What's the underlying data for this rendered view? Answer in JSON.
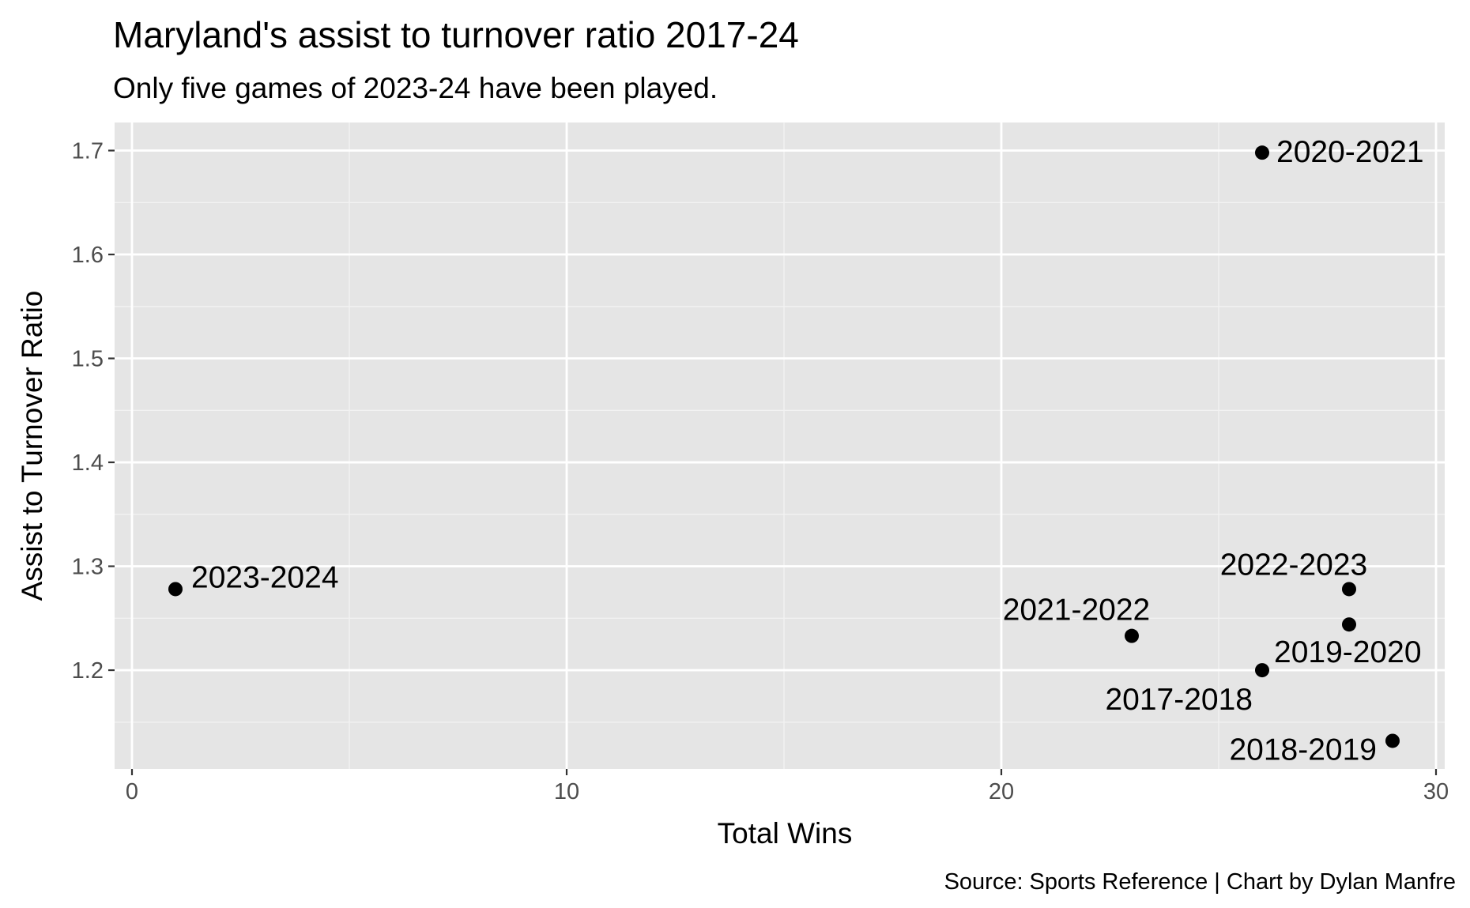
{
  "chart_data": {
    "type": "scatter",
    "title": "Maryland's assist to turnover ratio 2017-24",
    "subtitle": "Only five games of 2023-24 have been played.",
    "xlabel": "Total Wins",
    "ylabel": "Assist to Turnover Ratio",
    "caption": "Source: Sports Reference | Chart by Dylan Manfre",
    "xlim": [
      -0.4,
      30.2
    ],
    "ylim": [
      1.105,
      1.727
    ],
    "x_ticks": [
      0,
      10,
      20,
      30
    ],
    "y_ticks": [
      1.2,
      1.3,
      1.4,
      1.5,
      1.6,
      1.7
    ],
    "x_tick_labels": [
      "0",
      "10",
      "20",
      "30"
    ],
    "y_tick_labels": [
      "1.2",
      "1.3",
      "1.4",
      "1.5",
      "1.6",
      "1.7"
    ],
    "grid": true,
    "background": "#e5e5e5",
    "point_color": "#000000",
    "points": [
      {
        "label": "2017-2018",
        "x": 26,
        "y": 1.2
      },
      {
        "label": "2018-2019",
        "x": 29,
        "y": 1.132
      },
      {
        "label": "2019-2020",
        "x": 28,
        "y": 1.244
      },
      {
        "label": "2020-2021",
        "x": 26,
        "y": 1.698
      },
      {
        "label": "2021-2022",
        "x": 23,
        "y": 1.233
      },
      {
        "label": "2022-2023",
        "x": 28,
        "y": 1.278
      },
      {
        "label": "2023-2024",
        "x": 1,
        "y": 1.278
      }
    ]
  }
}
